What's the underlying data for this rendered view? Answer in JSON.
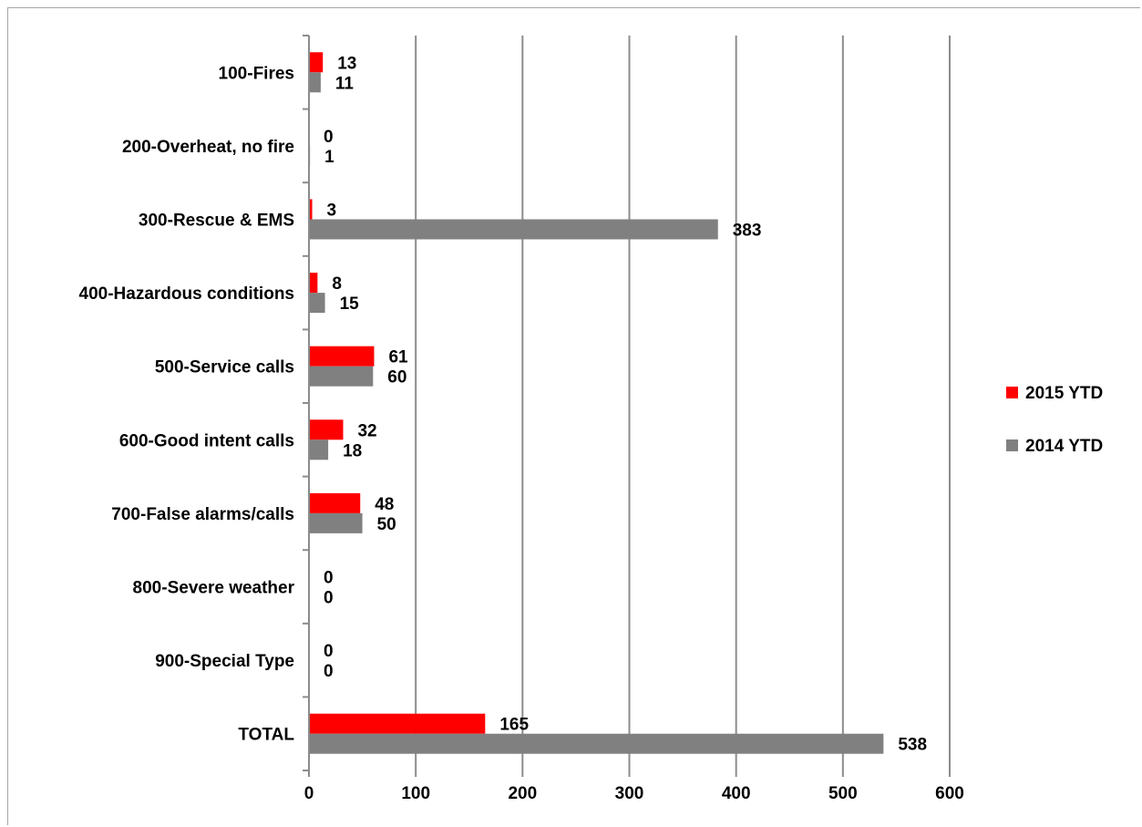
{
  "chart_data": {
    "type": "bar",
    "orientation": "horizontal",
    "categories": [
      "100-Fires",
      "200-Overheat, no fire",
      "300-Rescue & EMS",
      "400-Hazardous conditions",
      "500-Service calls",
      "600-Good intent calls",
      "700-False alarms/calls",
      "800-Severe weather",
      "900-Special Type",
      "TOTAL"
    ],
    "series": [
      {
        "name": "2015 YTD",
        "color": "#ff0000",
        "values": [
          13,
          0,
          3,
          8,
          61,
          32,
          48,
          0,
          0,
          165
        ]
      },
      {
        "name": "2014 YTD",
        "color": "#808080",
        "values": [
          11,
          1,
          383,
          15,
          60,
          18,
          50,
          0,
          0,
          538
        ]
      }
    ],
    "xlim": [
      0,
      600
    ],
    "x_ticks": [
      "0",
      "100",
      "200",
      "300",
      "400",
      "500",
      "600"
    ],
    "title": "",
    "xlabel": "",
    "ylabel": "",
    "grid": "vertical major gridlines",
    "legend_position": "right"
  }
}
